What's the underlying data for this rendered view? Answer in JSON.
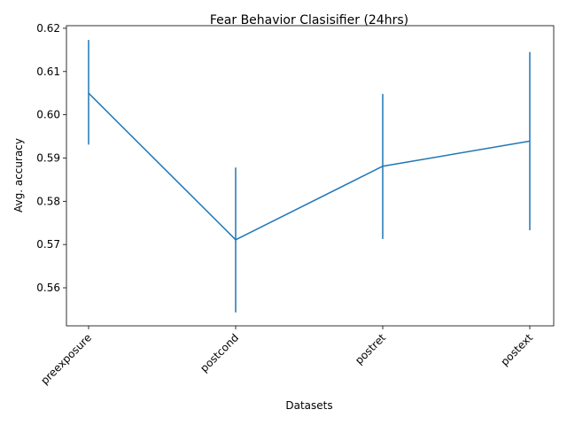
{
  "chart_data": {
    "type": "line",
    "title": "Fear Behavior Clasisifier (24hrs)",
    "xlabel": "Datasets",
    "ylabel": "Avg. accuracy",
    "categories": [
      "preexposure",
      "postcond",
      "postret",
      "postext"
    ],
    "series": [
      {
        "values": [
          0.605,
          0.5711,
          0.5881,
          0.5939
        ],
        "err_low": [
          0.5931,
          0.5543,
          0.5713,
          0.5733
        ],
        "err_high": [
          0.6173,
          0.5878,
          0.6048,
          0.6145
        ],
        "color": "#1f77b4"
      }
    ],
    "yticks": [
      "0.56",
      "0.57",
      "0.58",
      "0.59",
      "0.60",
      "0.61",
      "0.62"
    ],
    "ylim": [
      0.5512,
      0.6206
    ],
    "grid": false,
    "legend": "none"
  }
}
